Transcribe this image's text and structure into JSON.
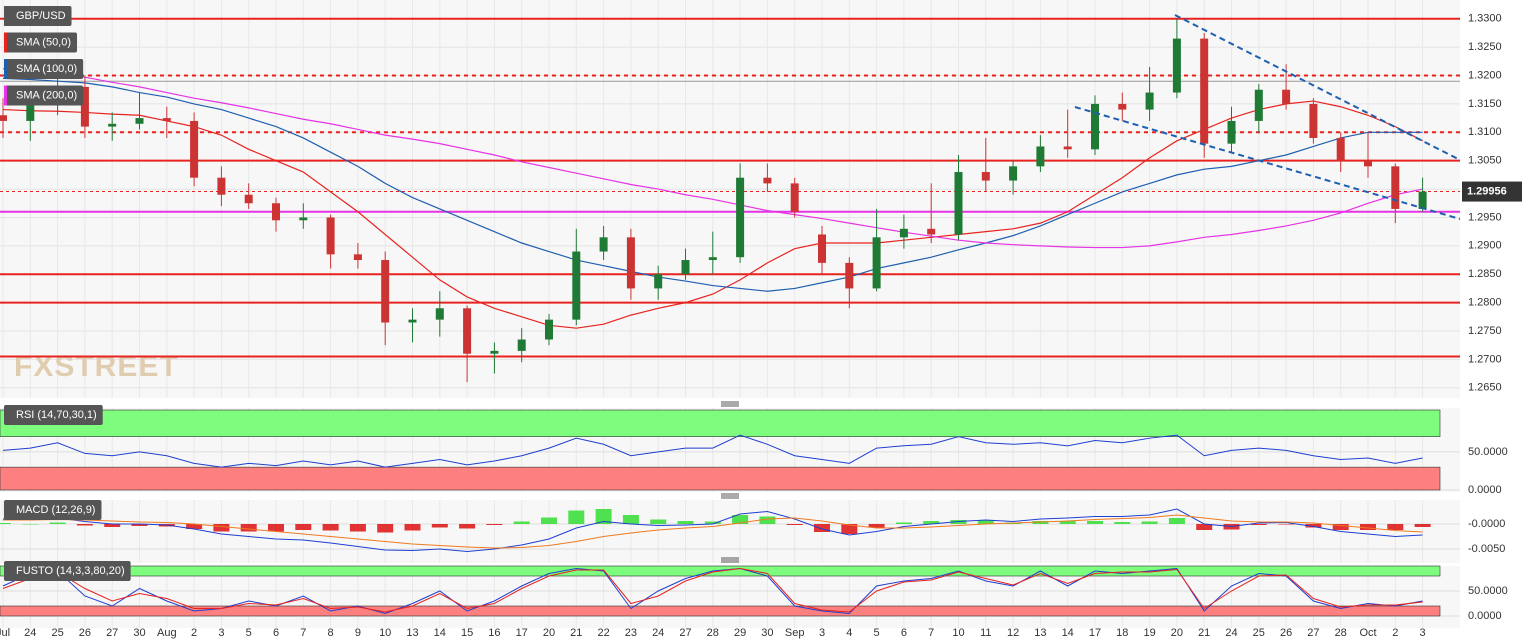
{
  "chart_data": {
    "type": "candlestick",
    "title": "GBP/USD",
    "watermark": "FXSTREET",
    "categories": [
      "Jul",
      "24",
      "25",
      "26",
      "27",
      "30",
      "Aug",
      "2",
      "3",
      "5",
      "6",
      "7",
      "8",
      "9",
      "10",
      "13",
      "14",
      "15",
      "16",
      "17",
      "20",
      "21",
      "22",
      "23",
      "24",
      "27",
      "28",
      "29",
      "30",
      "Sep",
      "3",
      "4",
      "5",
      "6",
      "7",
      "10",
      "11",
      "12",
      "13",
      "14",
      "17",
      "18",
      "19",
      "20",
      "21",
      "24",
      "25",
      "26",
      "27",
      "28",
      "Oct",
      "2",
      "3"
    ],
    "open": [
      1.313,
      1.312,
      1.315,
      1.318,
      1.311,
      1.3115,
      1.3125,
      1.312,
      1.302,
      1.299,
      1.2975,
      1.2945,
      1.295,
      1.2885,
      1.2875,
      1.2765,
      1.277,
      1.279,
      1.271,
      1.2715,
      1.2735,
      1.277,
      1.289,
      1.2915,
      1.2825,
      1.285,
      1.2875,
      1.288,
      1.302,
      1.301,
      1.292,
      1.287,
      1.2825,
      1.2915,
      1.293,
      1.292,
      1.303,
      1.3015,
      1.304,
      1.3075,
      1.307,
      1.315,
      1.314,
      1.317,
      1.3265,
      1.308,
      1.312,
      1.3175,
      1.315,
      1.309,
      1.305,
      1.304,
      1.2965
    ],
    "high": [
      1.316,
      1.316,
      1.3205,
      1.32,
      1.3135,
      1.317,
      1.3145,
      1.3135,
      1.304,
      1.301,
      1.2985,
      1.2975,
      1.2955,
      1.2905,
      1.289,
      1.279,
      1.282,
      1.2795,
      1.273,
      1.2755,
      1.278,
      1.293,
      1.2935,
      1.293,
      1.2865,
      1.2895,
      1.2925,
      1.3045,
      1.3045,
      1.302,
      1.2935,
      1.288,
      1.2965,
      1.2955,
      1.301,
      1.306,
      1.309,
      1.305,
      1.3095,
      1.314,
      1.3165,
      1.317,
      1.3215,
      1.33,
      1.3275,
      1.3145,
      1.3185,
      1.322,
      1.316,
      1.31,
      1.31,
      1.3045,
      1.302
    ],
    "low": [
      1.309,
      1.3085,
      1.313,
      1.309,
      1.3085,
      1.3105,
      1.309,
      1.3005,
      1.297,
      1.2965,
      1.2925,
      1.293,
      1.286,
      1.286,
      1.2725,
      1.273,
      1.274,
      1.266,
      1.2675,
      1.2695,
      1.2725,
      1.276,
      1.2875,
      1.2805,
      1.2805,
      1.284,
      1.285,
      1.287,
      1.2995,
      1.295,
      1.285,
      1.279,
      1.282,
      1.2895,
      1.2905,
      1.291,
      1.2995,
      1.299,
      1.303,
      1.3055,
      1.306,
      1.312,
      1.312,
      1.316,
      1.3055,
      1.3065,
      1.31,
      1.314,
      1.308,
      1.303,
      1.302,
      1.294,
      1.296
    ],
    "close": [
      1.312,
      1.315,
      1.318,
      1.311,
      1.3115,
      1.3125,
      1.312,
      1.302,
      1.299,
      1.2975,
      1.2945,
      1.295,
      1.2885,
      1.2875,
      1.2765,
      1.277,
      1.279,
      1.271,
      1.2715,
      1.2735,
      1.277,
      1.289,
      1.2915,
      1.2825,
      1.285,
      1.2875,
      1.288,
      1.302,
      1.301,
      1.296,
      1.287,
      1.2825,
      1.2915,
      1.293,
      1.292,
      1.303,
      1.3015,
      1.304,
      1.3075,
      1.307,
      1.315,
      1.314,
      1.317,
      1.3265,
      1.308,
      1.312,
      1.3175,
      1.315,
      1.309,
      1.305,
      1.304,
      1.2965,
      1.29956
    ],
    "up_color": "#1f7a35",
    "down_color": "#cc3333",
    "series": [
      {
        "name": "SMA (50,0)",
        "color": "#e8231f",
        "values": [
          1.314,
          1.3138,
          1.3137,
          1.3135,
          1.3132,
          1.313,
          1.312,
          1.311,
          1.3095,
          1.307,
          1.305,
          1.303,
          1.2995,
          1.296,
          1.292,
          1.288,
          1.284,
          1.281,
          1.279,
          1.2775,
          1.276,
          1.2755,
          1.2762,
          1.2778,
          1.279,
          1.28,
          1.2815,
          1.284,
          1.287,
          1.2895,
          1.2905,
          1.2905,
          1.2905,
          1.291,
          1.2915,
          1.292,
          1.2925,
          1.293,
          1.294,
          1.296,
          1.299,
          1.302,
          1.3055,
          1.3085,
          1.3105,
          1.3125,
          1.314,
          1.315,
          1.3155,
          1.3145,
          1.313,
          1.311,
          1.3085
        ]
      },
      {
        "name": "SMA (100,0)",
        "color": "#1f5fb0",
        "values": [
          1.3195,
          1.3193,
          1.319,
          1.3187,
          1.318,
          1.317,
          1.3162,
          1.315,
          1.314,
          1.3125,
          1.311,
          1.309,
          1.3065,
          1.304,
          1.301,
          1.2985,
          1.2965,
          1.2945,
          1.2925,
          1.2905,
          1.289,
          1.2875,
          1.2865,
          1.2855,
          1.2845,
          1.2838,
          1.283,
          1.2825,
          1.282,
          1.2825,
          1.2835,
          1.2845,
          1.286,
          1.287,
          1.288,
          1.2893,
          1.2905,
          1.2918,
          1.2935,
          1.2955,
          1.2975,
          1.2995,
          1.301,
          1.3025,
          1.3035,
          1.304,
          1.305,
          1.306,
          1.3075,
          1.309,
          1.31,
          1.31,
          1.31
        ]
      },
      {
        "name": "SMA (200,0)",
        "color": "#e633e6",
        "values": [
          1.3212,
          1.3208,
          1.3203,
          1.3197,
          1.3188,
          1.318,
          1.317,
          1.316,
          1.3152,
          1.3143,
          1.3133,
          1.3123,
          1.3115,
          1.3105,
          1.3095,
          1.3088,
          1.308,
          1.307,
          1.306,
          1.3048,
          1.3038,
          1.3028,
          1.3018,
          1.3008,
          1.3,
          1.299,
          1.2982,
          1.2972,
          1.2962,
          1.2955,
          1.2948,
          1.294,
          1.2932,
          1.2924,
          1.2917,
          1.291,
          1.2905,
          1.2902,
          1.29,
          1.2898,
          1.2897,
          1.2897,
          1.29,
          1.2907,
          1.2915,
          1.292,
          1.2927,
          1.2935,
          1.2945,
          1.2958,
          1.2975,
          1.299,
          1.3
        ]
      }
    ],
    "ylim": [
      1.2632,
      1.3333
    ],
    "yticks": [
      {
        "value": 1.33,
        "label": "1.3300"
      },
      {
        "value": 1.325,
        "label": "1.3250"
      },
      {
        "value": 1.32,
        "label": "1.3200"
      },
      {
        "value": 1.315,
        "label": "1.3150"
      },
      {
        "value": 1.31,
        "label": "1.3100"
      },
      {
        "value": 1.305,
        "label": "1.3050"
      },
      {
        "value": 1.3,
        "label": "1.3000"
      },
      {
        "value": 1.295,
        "label": "1.2950"
      },
      {
        "value": 1.29,
        "label": "1.2900"
      },
      {
        "value": 1.285,
        "label": "1.2850"
      },
      {
        "value": 1.28,
        "label": "1.2800"
      },
      {
        "value": 1.275,
        "label": "1.2750"
      },
      {
        "value": 1.27,
        "label": "1.2700"
      },
      {
        "value": 1.265,
        "label": "1.2650"
      }
    ],
    "grid": true,
    "last_price": 1.29956,
    "levels": [
      {
        "value": 1.33,
        "color": "#e8231f",
        "style": "solid"
      },
      {
        "value": 1.32,
        "color": "#e8231f",
        "style": "dashed"
      },
      {
        "value": 1.319,
        "color": "#999999",
        "style": "solid"
      },
      {
        "value": 1.31,
        "color": "#e8231f",
        "style": "dashed"
      },
      {
        "value": 1.305,
        "color": "#e8231f",
        "style": "solid"
      },
      {
        "value": 1.296,
        "color": "#e633e6",
        "style": "solid"
      },
      {
        "value": 1.285,
        "color": "#e8231f",
        "style": "solid"
      },
      {
        "value": 1.28,
        "color": "#e8231f",
        "style": "solid"
      },
      {
        "value": 1.2705,
        "color": "#e8231f",
        "style": "solid"
      }
    ],
    "indicators": [
      {
        "type": "line",
        "title": "RSI (14,70,30,1)",
        "ylim": [
          0,
          105
        ],
        "yticks": [
          {
            "value": 50,
            "label": "50.0000"
          },
          {
            "value": 0,
            "label": "0.0000"
          }
        ],
        "bands": [
          {
            "range": [
              70,
              105
            ],
            "color": "#7dfc7d"
          },
          {
            "range": [
              0,
              30
            ],
            "color": "#fc8080"
          }
        ],
        "series": [
          {
            "color": "#1f3fd0",
            "values": [
              52,
              55,
              62,
              48,
              45,
              50,
              45,
              35,
              30,
              35,
              32,
              38,
              33,
              38,
              30,
              35,
              40,
              33,
              38,
              45,
              55,
              68,
              60,
              45,
              50,
              55,
              55,
              72,
              60,
              45,
              40,
              35,
              55,
              58,
              60,
              70,
              62,
              60,
              62,
              58,
              65,
              62,
              68,
              72,
              45,
              52,
              55,
              52,
              45,
              40,
              42,
              35,
              42
            ]
          }
        ]
      },
      {
        "type": "line",
        "title": "MACD (12,26,9)",
        "ylim": [
          -0.0072,
          0.0038
        ],
        "yticks": [
          {
            "value": 0,
            "label": "-0.0000"
          },
          {
            "value": -0.005,
            "label": "-0.0050"
          }
        ],
        "histogram": {
          "up_color": "#33dd33",
          "down_color": "#dd1111",
          "values": [
            0.0002,
            0,
            0.0003,
            -0.0003,
            -0.0006,
            -0.0004,
            -0.0005,
            -0.001,
            -0.0015,
            -0.0015,
            -0.0015,
            -0.0012,
            -0.0013,
            -0.0015,
            -0.0017,
            -0.0013,
            -0.0007,
            -0.0009,
            -0.0002,
            0.0005,
            0.0013,
            0.0027,
            0.003,
            0.0018,
            0.0009,
            0.0006,
            0.0005,
            0.0018,
            0.0015,
            -0.0002,
            -0.0016,
            -0.002,
            -0.0007,
            0.0003,
            0.0006,
            0.0008,
            0.0008,
            0.0003,
            0.0006,
            0.0006,
            0.0006,
            0.0004,
            0.0005,
            0.0012,
            -0.0012,
            -0.0011,
            -0.0002,
            -0.0001,
            -0.0007,
            -0.0012,
            -0.0012,
            -0.0012,
            -0.0006
          ]
        },
        "series": [
          {
            "color": "#1f3fd0",
            "values": [
              0.001,
              0.0008,
              0.0012,
              0.0005,
              0,
              0,
              -0.0002,
              -0.001,
              -0.002,
              -0.0025,
              -0.003,
              -0.0032,
              -0.0038,
              -0.0045,
              -0.0052,
              -0.0053,
              -0.005,
              -0.0055,
              -0.005,
              -0.0042,
              -0.003,
              -0.0008,
              0.0005,
              0,
              -0.0003,
              -0.0002,
              0,
              0.002,
              0.0025,
              0.001,
              -0.001,
              -0.0022,
              -0.0015,
              -0.0005,
              0,
              0.0005,
              0.0008,
              0.0005,
              0.001,
              0.0012,
              0.0015,
              0.0015,
              0.0018,
              0.003,
              0,
              -0.0005,
              0.0002,
              0.0003,
              -0.0005,
              -0.0015,
              -0.002,
              -0.0025,
              -0.0022
            ]
          },
          {
            "color": "#f07a20",
            "values": [
              0.0008,
              0.0008,
              0.0009,
              0.0008,
              0.0006,
              0.0004,
              0.0003,
              0,
              -0.0005,
              -0.001,
              -0.0015,
              -0.002,
              -0.0025,
              -0.003,
              -0.0035,
              -0.004,
              -0.0043,
              -0.0046,
              -0.0048,
              -0.0047,
              -0.0043,
              -0.0035,
              -0.0025,
              -0.0018,
              -0.0012,
              -0.0008,
              -0.0005,
              0.0002,
              0.001,
              0.0012,
              0.0006,
              -0.0002,
              -0.0008,
              -0.0008,
              -0.0006,
              -0.0003,
              0,
              0.0002,
              0.0004,
              0.0006,
              0.0009,
              0.0011,
              0.0013,
              0.0018,
              0.0012,
              0.0006,
              0.0004,
              0.0004,
              0.0002,
              -0.0003,
              -0.0008,
              -0.0013,
              -0.0016
            ]
          }
        ]
      },
      {
        "type": "line",
        "title": "FUSTO (14,3,3,80,20)",
        "ylim": [
          -24,
          100
        ],
        "yticks": [
          {
            "value": 50,
            "label": "50.0000"
          },
          {
            "value": 0,
            "label": "0.0000"
          }
        ],
        "bands": [
          {
            "range": [
              80,
              100
            ],
            "color": "#7dfc7d"
          },
          {
            "range": [
              0,
              20
            ],
            "color": "#fc8080"
          }
        ],
        "series": [
          {
            "color": "#1f3fd0",
            "values": [
              60,
              85,
              90,
              40,
              20,
              55,
              30,
              10,
              15,
              30,
              20,
              40,
              10,
              20,
              5,
              25,
              50,
              10,
              30,
              60,
              85,
              95,
              90,
              15,
              50,
              75,
              90,
              95,
              80,
              20,
              10,
              5,
              60,
              70,
              75,
              90,
              70,
              60,
              90,
              60,
              90,
              85,
              90,
              95,
              10,
              60,
              85,
              80,
              30,
              15,
              25,
              20,
              30
            ]
          },
          {
            "color": "#e8231f",
            "values": [
              55,
              75,
              88,
              55,
              30,
              45,
              35,
              15,
              15,
              25,
              22,
              35,
              15,
              18,
              8,
              20,
              45,
              15,
              25,
              55,
              80,
              92,
              92,
              25,
              40,
              70,
              88,
              95,
              85,
              25,
              12,
              8,
              50,
              68,
              72,
              88,
              75,
              62,
              85,
              65,
              85,
              88,
              88,
              93,
              15,
              50,
              80,
              82,
              35,
              18,
              22,
              22,
              28
            ]
          }
        ]
      }
    ]
  }
}
